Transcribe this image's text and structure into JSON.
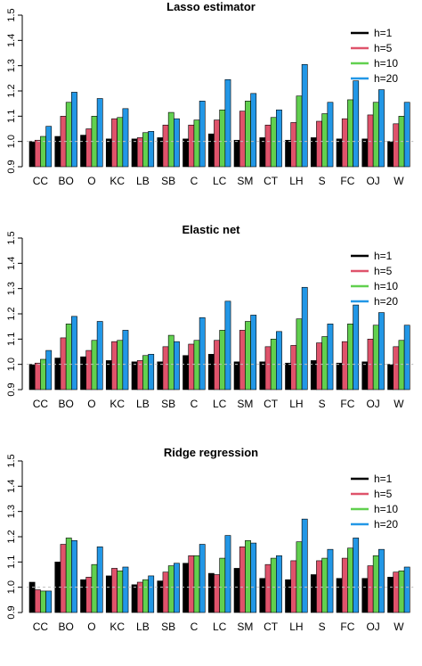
{
  "chart_data": [
    {
      "type": "bar",
      "title": "Lasso estimator",
      "categories": [
        "CC",
        "BO",
        "O",
        "KC",
        "LB",
        "SB",
        "C",
        "LC",
        "SM",
        "CT",
        "LH",
        "S",
        "FC",
        "OJ",
        "W"
      ],
      "ylim": [
        0.9,
        1.5
      ],
      "yticks": [
        "0.9",
        "1.0",
        "1.1",
        "1.2",
        "1.3",
        "1.4",
        "1.5"
      ],
      "reference_line": 1.0,
      "legend_position": "top-right",
      "series": [
        {
          "name": "h=1",
          "color": "#000000",
          "values": [
            1.0,
            1.02,
            1.025,
            1.01,
            1.01,
            1.015,
            1.01,
            1.03,
            1.005,
            1.015,
            1.005,
            1.015,
            1.01,
            1.01,
            1.0
          ]
        },
        {
          "name": "h=5",
          "color": "#DF536B",
          "values": [
            1.005,
            1.1,
            1.05,
            1.09,
            1.015,
            1.065,
            1.065,
            1.085,
            1.12,
            1.065,
            1.075,
            1.08,
            1.09,
            1.105,
            1.07
          ]
        },
        {
          "name": "h=10",
          "color": "#61D04F",
          "values": [
            1.02,
            1.155,
            1.1,
            1.095,
            1.035,
            1.115,
            1.085,
            1.125,
            1.16,
            1.095,
            1.18,
            1.11,
            1.165,
            1.155,
            1.1
          ]
        },
        {
          "name": "h=20",
          "color": "#2297E6",
          "values": [
            1.06,
            1.195,
            1.17,
            1.13,
            1.04,
            1.09,
            1.16,
            1.245,
            1.19,
            1.125,
            1.305,
            1.155,
            1.24,
            1.205,
            1.155
          ]
        }
      ]
    },
    {
      "type": "bar",
      "title": "Elastic net",
      "categories": [
        "CC",
        "BO",
        "O",
        "KC",
        "LB",
        "SB",
        "C",
        "LC",
        "SM",
        "CT",
        "LH",
        "S",
        "FC",
        "OJ",
        "W"
      ],
      "ylim": [
        0.9,
        1.5
      ],
      "yticks": [
        "0.9",
        "1.0",
        "1.1",
        "1.2",
        "1.3",
        "1.4",
        "1.5"
      ],
      "reference_line": 1.0,
      "legend_position": "top-right",
      "series": [
        {
          "name": "h=1",
          "color": "#000000",
          "values": [
            1.0,
            1.025,
            1.03,
            1.015,
            1.01,
            1.01,
            1.035,
            1.04,
            1.01,
            1.01,
            1.005,
            1.015,
            1.005,
            1.01,
            1.0
          ]
        },
        {
          "name": "h=5",
          "color": "#DF536B",
          "values": [
            1.005,
            1.105,
            1.055,
            1.09,
            1.015,
            1.07,
            1.08,
            1.095,
            1.135,
            1.07,
            1.075,
            1.085,
            1.09,
            1.1,
            1.07
          ]
        },
        {
          "name": "h=10",
          "color": "#61D04F",
          "values": [
            1.02,
            1.16,
            1.095,
            1.095,
            1.035,
            1.115,
            1.095,
            1.135,
            1.17,
            1.1,
            1.18,
            1.11,
            1.16,
            1.155,
            1.095
          ]
        },
        {
          "name": "h=20",
          "color": "#2297E6",
          "values": [
            1.055,
            1.19,
            1.17,
            1.135,
            1.04,
            1.09,
            1.185,
            1.25,
            1.195,
            1.13,
            1.305,
            1.16,
            1.235,
            1.205,
            1.155
          ]
        }
      ]
    },
    {
      "type": "bar",
      "title": "Ridge regression",
      "categories": [
        "CC",
        "BO",
        "O",
        "KC",
        "LB",
        "SB",
        "C",
        "LC",
        "SM",
        "CT",
        "LH",
        "S",
        "FC",
        "OJ",
        "W"
      ],
      "ylim": [
        0.9,
        1.5
      ],
      "yticks": [
        "0.9",
        "1.0",
        "1.1",
        "1.2",
        "1.3",
        "1.4",
        "1.5"
      ],
      "reference_line": 1.0,
      "legend_position": "top-right",
      "series": [
        {
          "name": "h=1",
          "color": "#000000",
          "values": [
            1.02,
            1.1,
            1.03,
            1.045,
            1.01,
            1.025,
            1.095,
            1.055,
            1.075,
            1.035,
            1.03,
            1.05,
            1.035,
            1.035,
            1.04
          ]
        },
        {
          "name": "h=5",
          "color": "#DF536B",
          "values": [
            0.99,
            1.17,
            1.04,
            1.075,
            1.02,
            1.06,
            1.125,
            1.05,
            1.16,
            1.09,
            1.105,
            1.105,
            1.115,
            1.085,
            1.06
          ]
        },
        {
          "name": "h=10",
          "color": "#61D04F",
          "values": [
            0.985,
            1.195,
            1.09,
            1.065,
            1.03,
            1.085,
            1.125,
            1.115,
            1.185,
            1.115,
            1.18,
            1.115,
            1.155,
            1.125,
            1.065
          ]
        },
        {
          "name": "h=20",
          "color": "#2297E6",
          "values": [
            0.985,
            1.185,
            1.16,
            1.08,
            1.045,
            1.095,
            1.17,
            1.205,
            1.175,
            1.125,
            1.27,
            1.15,
            1.195,
            1.15,
            1.08
          ]
        }
      ]
    }
  ]
}
